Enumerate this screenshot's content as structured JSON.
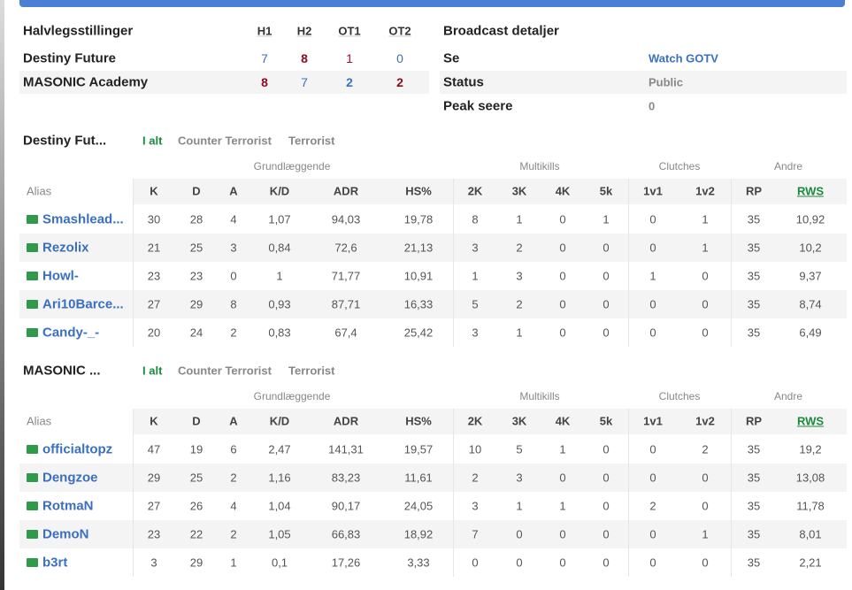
{
  "halftime": {
    "headers": [
      "Halvlegsstillinger",
      "H1",
      "H2",
      "OT1",
      "OT2"
    ],
    "rows": [
      [
        "Destiny Future",
        "7",
        "8",
        "1",
        "0"
      ],
      [
        "MASONIC Academy",
        "8",
        "7",
        "2",
        "2"
      ]
    ]
  },
  "broadcast": {
    "title": "Broadcast detaljer",
    "rows": [
      [
        "Se",
        "Watch GOTV"
      ],
      [
        "Status",
        "Public"
      ],
      [
        "Peak seere",
        "0"
      ]
    ]
  },
  "teams": [
    {
      "name": "Destiny Fut...",
      "tabs": [
        "I alt",
        "Counter Terrorist",
        "Terrorist"
      ],
      "groups": [
        "Grundlæggende",
        "Multikills",
        "Clutches",
        "Andre"
      ],
      "columns": [
        "Alias",
        "K",
        "D",
        "A",
        "K/D",
        "ADR",
        "HS%",
        "2K",
        "3K",
        "4K",
        "5k",
        "1v1",
        "1v2",
        "RP",
        "RWS"
      ],
      "players": [
        [
          "Smashlead...",
          "30",
          "28",
          "4",
          "1,07",
          "94,03",
          "19,78",
          "8",
          "1",
          "0",
          "1",
          "0",
          "1",
          "35",
          "10,92"
        ],
        [
          "Rezolix",
          "21",
          "25",
          "3",
          "0,84",
          "72,6",
          "21,13",
          "3",
          "2",
          "0",
          "0",
          "0",
          "1",
          "35",
          "10,2"
        ],
        [
          "Howl-",
          "23",
          "23",
          "0",
          "1",
          "71,77",
          "10,91",
          "1",
          "3",
          "0",
          "0",
          "1",
          "0",
          "35",
          "9,37"
        ],
        [
          "Ari10Barce...",
          "27",
          "29",
          "8",
          "0,93",
          "87,71",
          "16,33",
          "5",
          "2",
          "0",
          "0",
          "0",
          "0",
          "35",
          "8,74"
        ],
        [
          "Candy-_-",
          "20",
          "24",
          "2",
          "0,83",
          "67,4",
          "25,42",
          "3",
          "1",
          "0",
          "0",
          "0",
          "0",
          "35",
          "6,49"
        ]
      ]
    },
    {
      "name": "MASONIC ...",
      "tabs": [
        "I alt",
        "Counter Terrorist",
        "Terrorist"
      ],
      "groups": [
        "Grundlæggende",
        "Multikills",
        "Clutches",
        "Andre"
      ],
      "columns": [
        "Alias",
        "K",
        "D",
        "A",
        "K/D",
        "ADR",
        "HS%",
        "2K",
        "3K",
        "4K",
        "5k",
        "1v1",
        "1v2",
        "RP",
        "RWS"
      ],
      "players": [
        [
          "officialtopz",
          "47",
          "19",
          "6",
          "2,47",
          "141,31",
          "19,57",
          "10",
          "5",
          "1",
          "0",
          "0",
          "2",
          "35",
          "19,2"
        ],
        [
          "Dengzoe",
          "29",
          "25",
          "2",
          "1,16",
          "83,23",
          "11,61",
          "2",
          "3",
          "0",
          "0",
          "0",
          "0",
          "35",
          "13,08"
        ],
        [
          "RotmaN",
          "27",
          "26",
          "4",
          "1,04",
          "90,17",
          "24,05",
          "3",
          "1",
          "1",
          "0",
          "2",
          "0",
          "35",
          "11,78"
        ],
        [
          "DemoN",
          "23",
          "22",
          "2",
          "1,05",
          "66,83",
          "18,92",
          "7",
          "0",
          "0",
          "0",
          "0",
          "1",
          "35",
          "8,01"
        ],
        [
          "b3rt",
          "3",
          "29",
          "1",
          "0,1",
          "17,26",
          "3,33",
          "0",
          "0",
          "0",
          "0",
          "0",
          "0",
          "35",
          "2,21"
        ]
      ]
    }
  ]
}
